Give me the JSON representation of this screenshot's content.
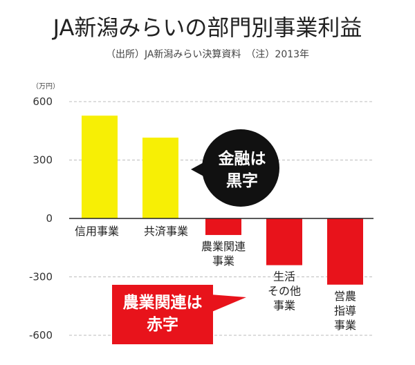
{
  "chart_data": {
    "type": "bar",
    "title": "JA新潟みらいの部門別事業利益",
    "subtitle": "（出所）JA新潟みらい決算資料　（注）2013年",
    "unit": "（万円）",
    "ylim": [
      -600,
      600
    ],
    "yticks": [
      600,
      300,
      0,
      -300,
      -600
    ],
    "grid": true,
    "categories": [
      {
        "lines": [
          "信用事業"
        ]
      },
      {
        "lines": [
          "共済事業"
        ]
      },
      {
        "lines": [
          "農業関連",
          "事業"
        ]
      },
      {
        "lines": [
          "生活",
          "その他",
          "事業"
        ]
      },
      {
        "lines": [
          "営農",
          "指導",
          "事業"
        ]
      }
    ],
    "values": [
      528,
      415,
      -85,
      -240,
      -340
    ],
    "colors": {
      "positive": "#f7ef05",
      "negative": "#e8131b",
      "black_callout": "#111111",
      "red_callout": "#e8131b",
      "callout_text": "#ffffff"
    },
    "annotations": [
      {
        "lines": [
          "金融は",
          "黒字"
        ],
        "style": "black-bubble"
      },
      {
        "lines": [
          "農業関連は",
          "赤字"
        ],
        "style": "red-box"
      }
    ]
  }
}
